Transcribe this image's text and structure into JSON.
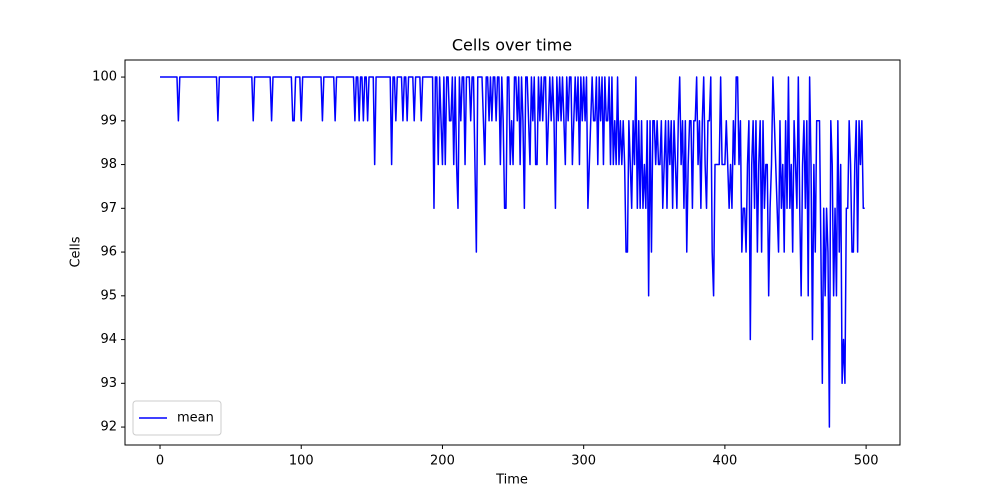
{
  "chart_data": {
    "type": "line",
    "title": "Cells over time",
    "x_label": "Time",
    "y_label": "Cells",
    "x": [
      0,
      1,
      2,
      3,
      4,
      5,
      6,
      7,
      8,
      9,
      10,
      11,
      12,
      13,
      14,
      15,
      16,
      17,
      18,
      19,
      20,
      21,
      22,
      23,
      24,
      25,
      26,
      27,
      28,
      29,
      30,
      31,
      32,
      33,
      34,
      35,
      36,
      37,
      38,
      39,
      40,
      41,
      42,
      43,
      44,
      45,
      46,
      47,
      48,
      49,
      50,
      51,
      52,
      53,
      54,
      55,
      56,
      57,
      58,
      59,
      60,
      61,
      62,
      63,
      64,
      65,
      66,
      67,
      68,
      69,
      70,
      71,
      72,
      73,
      74,
      75,
      76,
      77,
      78,
      79,
      80,
      81,
      82,
      83,
      84,
      85,
      86,
      87,
      88,
      89,
      90,
      91,
      92,
      93,
      94,
      95,
      96,
      97,
      98,
      99,
      100,
      101,
      102,
      103,
      104,
      105,
      106,
      107,
      108,
      109,
      110,
      111,
      112,
      113,
      114,
      115,
      116,
      117,
      118,
      119,
      120,
      121,
      122,
      123,
      124,
      125,
      126,
      127,
      128,
      129,
      130,
      131,
      132,
      133,
      134,
      135,
      136,
      137,
      138,
      139,
      140,
      141,
      142,
      143,
      144,
      145,
      146,
      147,
      148,
      149,
      150,
      151,
      152,
      153,
      154,
      155,
      156,
      157,
      158,
      159,
      160,
      161,
      162,
      163,
      164,
      165,
      166,
      167,
      168,
      169,
      170,
      171,
      172,
      173,
      174,
      175,
      176,
      177,
      178,
      179,
      180,
      181,
      182,
      183,
      184,
      185,
      186,
      187,
      188,
      189,
      190,
      191,
      192,
      193,
      194,
      195,
      196,
      197,
      198,
      199,
      200,
      201,
      202,
      203,
      204,
      205,
      206,
      207,
      208,
      209,
      210,
      211,
      212,
      213,
      214,
      215,
      216,
      217,
      218,
      219,
      220,
      221,
      222,
      223,
      224,
      225,
      226,
      227,
      228,
      229,
      230,
      231,
      232,
      233,
      234,
      235,
      236,
      237,
      238,
      239,
      240,
      241,
      242,
      243,
      244,
      245,
      246,
      247,
      248,
      249,
      250,
      251,
      252,
      253,
      254,
      255,
      256,
      257,
      258,
      259,
      260,
      261,
      262,
      263,
      264,
      265,
      266,
      267,
      268,
      269,
      270,
      271,
      272,
      273,
      274,
      275,
      276,
      277,
      278,
      279,
      280,
      281,
      282,
      283,
      284,
      285,
      286,
      287,
      288,
      289,
      290,
      291,
      292,
      293,
      294,
      295,
      296,
      297,
      298,
      299,
      300,
      301,
      302,
      303,
      304,
      305,
      306,
      307,
      308,
      309,
      310,
      311,
      312,
      313,
      314,
      315,
      316,
      317,
      318,
      319,
      320,
      321,
      322,
      323,
      324,
      325,
      326,
      327,
      328,
      329,
      330,
      331,
      332,
      333,
      334,
      335,
      336,
      337,
      338,
      339,
      340,
      341,
      342,
      343,
      344,
      345,
      346,
      347,
      348,
      349,
      350,
      351,
      352,
      353,
      354,
      355,
      356,
      357,
      358,
      359,
      360,
      361,
      362,
      363,
      364,
      365,
      366,
      367,
      368,
      369,
      370,
      371,
      372,
      373,
      374,
      375,
      376,
      377,
      378,
      379,
      380,
      381,
      382,
      383,
      384,
      385,
      386,
      387,
      388,
      389,
      390,
      391,
      392,
      393,
      394,
      395,
      396,
      397,
      398,
      399,
      400,
      401,
      402,
      403,
      404,
      405,
      406,
      407,
      408,
      409,
      410,
      411,
      412,
      413,
      414,
      415,
      416,
      417,
      418,
      419,
      420,
      421,
      422,
      423,
      424,
      425,
      426,
      427,
      428,
      429,
      430,
      431,
      432,
      433,
      434,
      435,
      436,
      437,
      438,
      439,
      440,
      441,
      442,
      443,
      444,
      445,
      446,
      447,
      448,
      449,
      450,
      451,
      452,
      453,
      454,
      455,
      456,
      457,
      458,
      459,
      460,
      461,
      462,
      463,
      464,
      465,
      466,
      467,
      468,
      469,
      470,
      471,
      472,
      473,
      474,
      475,
      476,
      477,
      478,
      479,
      480,
      481,
      482,
      483,
      484,
      485,
      486,
      487,
      488,
      489,
      490,
      491,
      492,
      493,
      494,
      495,
      496,
      497,
      498,
      499
    ],
    "series": [
      {
        "name": "mean",
        "color": "#0000ff",
        "values": [
          100,
          100,
          100,
          100,
          100,
          100,
          100,
          100,
          100,
          100,
          100,
          100,
          100,
          99,
          100,
          100,
          100,
          100,
          100,
          100,
          100,
          100,
          100,
          100,
          100,
          100,
          100,
          100,
          100,
          100,
          100,
          100,
          100,
          100,
          100,
          100,
          100,
          100,
          100,
          100,
          100,
          99,
          100,
          100,
          100,
          100,
          100,
          100,
          100,
          100,
          100,
          100,
          100,
          100,
          100,
          100,
          100,
          100,
          100,
          100,
          100,
          100,
          100,
          100,
          100,
          100,
          99,
          100,
          100,
          100,
          100,
          100,
          100,
          100,
          100,
          100,
          100,
          100,
          100,
          99,
          100,
          100,
          100,
          100,
          100,
          100,
          100,
          100,
          100,
          100,
          100,
          100,
          100,
          100,
          99,
          99,
          100,
          100,
          100,
          100,
          99,
          100,
          100,
          100,
          100,
          100,
          100,
          100,
          100,
          100,
          100,
          100,
          100,
          100,
          100,
          99,
          100,
          100,
          100,
          100,
          100,
          100,
          100,
          100,
          99,
          100,
          100,
          100,
          100,
          100,
          100,
          100,
          100,
          100,
          100,
          100,
          100,
          100,
          99,
          100,
          100,
          99,
          100,
          100,
          99,
          100,
          100,
          99,
          100,
          100,
          100,
          100,
          98,
          100,
          100,
          100,
          100,
          100,
          100,
          100,
          100,
          100,
          100,
          100,
          98,
          100,
          100,
          99,
          100,
          100,
          100,
          100,
          99,
          100,
          100,
          99,
          100,
          100,
          100,
          100,
          99,
          100,
          100,
          100,
          100,
          99,
          100,
          100,
          100,
          100,
          100,
          100,
          100,
          100,
          97,
          100,
          100,
          98,
          100,
          99,
          98,
          100,
          98,
          100,
          100,
          99,
          99,
          100,
          98,
          100,
          98,
          97,
          100,
          99,
          100,
          100,
          98,
          100,
          100,
          100,
          99,
          100,
          100,
          98,
          96,
          100,
          100,
          100,
          100,
          99,
          98,
          100,
          100,
          99,
          100,
          99,
          100,
          100,
          99,
          100,
          100,
          98,
          100,
          99,
          97,
          97,
          100,
          100,
          98,
          99,
          98,
          100,
          100,
          99,
          100,
          98,
          100,
          99,
          97,
          100,
          100,
          99,
          98,
          100,
          99,
          100,
          98,
          98,
          100,
          99,
          100,
          99,
          100,
          100,
          98,
          99,
          100,
          99,
          100,
          99,
          97,
          100,
          99,
          100,
          99,
          100,
          99,
          98,
          100,
          99,
          100,
          100,
          98,
          99,
          100,
          99,
          100,
          98,
          100,
          99,
          100,
          99,
          100,
          97,
          98,
          99,
          100,
          99,
          99,
          100,
          98,
          100,
          99,
          100,
          98,
          100,
          99,
          99,
          100,
          98,
          100,
          98,
          99,
          98,
          100,
          98,
          99,
          98,
          99,
          98,
          96,
          96,
          99,
          98,
          97,
          99,
          98,
          100,
          97,
          99,
          97,
          99,
          97,
          98,
          97,
          99,
          95,
          99,
          96,
          99,
          99,
          98,
          99,
          98,
          98,
          99,
          97,
          98,
          99,
          97,
          99,
          98,
          99,
          97,
          99,
          98,
          97,
          99,
          100,
          98,
          99,
          97,
          99,
          96,
          98,
          99,
          99,
          97,
          99,
          99,
          100,
          98,
          99,
          97,
          99,
          100,
          98,
          97,
          99,
          99,
          100,
          96,
          95,
          98,
          98,
          98,
          98,
          100,
          98,
          98,
          98,
          99,
          98,
          97,
          98,
          97,
          99,
          98,
          100,
          100,
          98,
          99,
          96,
          97,
          97,
          96,
          98,
          99,
          94,
          98,
          99,
          97,
          99,
          96,
          98,
          99,
          96,
          99,
          97,
          98,
          98,
          95,
          97,
          98,
          100,
          99,
          98,
          97,
          96,
          99,
          97,
          98,
          96,
          99,
          97,
          100,
          97,
          98,
          96,
          99,
          98,
          97,
          100,
          97,
          95,
          98,
          99,
          97,
          99,
          95,
          100,
          98,
          94,
          98,
          96,
          99,
          99,
          99,
          96,
          93,
          97,
          95,
          97,
          96,
          92,
          99,
          98,
          95,
          97,
          95,
          99,
          96,
          98,
          93,
          94,
          93,
          97,
          97,
          99,
          98,
          96,
          96,
          98,
          99,
          96,
          99,
          98,
          99,
          97,
          97
        ]
      }
    ],
    "xlim": [
      -24.8,
      524
    ],
    "ylim": [
      91.59,
      100.39
    ],
    "xticks": [
      0,
      100,
      200,
      300,
      400,
      500
    ],
    "yticks": [
      92,
      93,
      94,
      95,
      96,
      97,
      98,
      99,
      100
    ],
    "legend": "lower left"
  }
}
